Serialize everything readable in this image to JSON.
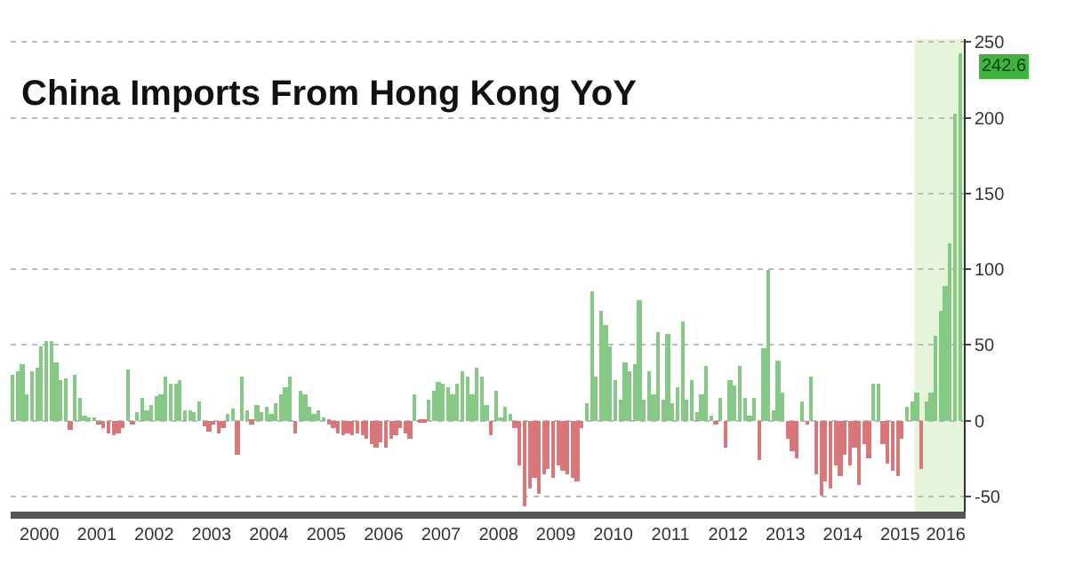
{
  "chart_data": {
    "type": "bar",
    "title": "China Imports From Hong Kong YoY",
    "x": [
      "2000-01",
      "2000-02",
      "2000-03",
      "2000-04",
      "2000-05",
      "2000-06",
      "2000-07",
      "2000-08",
      "2000-09",
      "2000-10",
      "2000-11",
      "2000-12",
      "2001-01",
      "2001-02",
      "2001-03",
      "2001-04",
      "2001-05",
      "2001-06",
      "2001-07",
      "2001-08",
      "2001-09",
      "2001-10",
      "2001-11",
      "2001-12",
      "2002-01",
      "2002-02",
      "2002-03",
      "2002-04",
      "2002-05",
      "2002-06",
      "2002-07",
      "2002-08",
      "2002-09",
      "2002-10",
      "2002-11",
      "2002-12",
      "2003-01",
      "2003-02",
      "2003-03",
      "2003-04",
      "2003-05",
      "2003-06",
      "2003-07",
      "2003-08",
      "2003-09",
      "2003-10",
      "2003-11",
      "2003-12",
      "2004-01",
      "2004-02",
      "2004-03",
      "2004-04",
      "2004-05",
      "2004-06",
      "2004-07",
      "2004-08",
      "2004-09",
      "2004-10",
      "2004-11",
      "2004-12",
      "2005-01",
      "2005-02",
      "2005-03",
      "2005-04",
      "2005-05",
      "2005-06",
      "2005-07",
      "2005-08",
      "2005-09",
      "2005-10",
      "2005-11",
      "2005-12",
      "2006-01",
      "2006-02",
      "2006-03",
      "2006-04",
      "2006-05",
      "2006-06",
      "2006-07",
      "2006-08",
      "2006-09",
      "2006-10",
      "2006-11",
      "2006-12",
      "2007-01",
      "2007-02",
      "2007-03",
      "2007-04",
      "2007-05",
      "2007-06",
      "2007-07",
      "2007-08",
      "2007-09",
      "2007-10",
      "2007-11",
      "2007-12",
      "2008-01",
      "2008-02",
      "2008-03",
      "2008-04",
      "2008-05",
      "2008-06",
      "2008-07",
      "2008-08",
      "2008-09",
      "2008-10",
      "2008-11",
      "2008-12",
      "2009-01",
      "2009-02",
      "2009-03",
      "2009-04",
      "2009-05",
      "2009-06",
      "2009-07",
      "2009-08",
      "2009-09",
      "2009-10",
      "2009-11",
      "2009-12",
      "2010-01",
      "2010-02",
      "2010-03",
      "2010-04",
      "2010-05",
      "2010-06",
      "2010-07",
      "2010-08",
      "2010-09",
      "2010-10",
      "2010-11",
      "2010-12",
      "2011-01",
      "2011-02",
      "2011-03",
      "2011-04",
      "2011-05",
      "2011-06",
      "2011-07",
      "2011-08",
      "2011-09",
      "2011-10",
      "2011-11",
      "2011-12",
      "2012-01",
      "2012-02",
      "2012-03",
      "2012-04",
      "2012-05",
      "2012-06",
      "2012-07",
      "2012-08",
      "2012-09",
      "2012-10",
      "2012-11",
      "2012-12",
      "2013-01",
      "2013-02",
      "2013-03",
      "2013-04",
      "2013-05",
      "2013-06",
      "2013-07",
      "2013-08",
      "2013-09",
      "2013-10",
      "2013-11",
      "2013-12",
      "2014-01",
      "2014-02",
      "2014-03",
      "2014-04",
      "2014-05",
      "2014-06",
      "2014-07",
      "2014-08",
      "2014-09",
      "2014-10",
      "2014-11",
      "2014-12",
      "2015-01",
      "2015-02",
      "2015-03",
      "2015-04",
      "2015-05",
      "2015-06",
      "2015-07",
      "2015-08",
      "2015-09",
      "2015-10",
      "2015-11",
      "2015-12",
      "2016-01",
      "2016-02",
      "2016-03",
      "2016-04",
      "2016-05",
      "2016-06",
      "2016-07"
    ],
    "values": [
      30,
      33,
      37,
      18,
      33,
      35,
      49,
      53,
      53,
      39,
      27,
      28,
      -6,
      30,
      15,
      3,
      2,
      1,
      -3,
      -5,
      -8,
      -9,
      -8,
      -5,
      34,
      -3,
      6,
      15,
      7,
      10,
      16,
      18,
      29,
      24,
      24,
      27,
      7,
      7,
      6,
      13,
      -4,
      -7,
      -3,
      -8,
      -5,
      4,
      8,
      -22,
      29,
      7,
      -2,
      10,
      6,
      9,
      5,
      12,
      18,
      22,
      29,
      -8,
      20,
      18,
      9,
      4,
      7,
      2,
      -2,
      -5,
      -8,
      -10,
      -8,
      -10,
      -8,
      -10,
      -12,
      -15,
      -18,
      -14,
      -18,
      -12,
      -10,
      -5,
      -8,
      -12,
      18,
      -1,
      -1,
      14,
      20,
      26,
      24,
      22,
      18,
      25,
      33,
      29,
      18,
      35,
      29,
      10,
      -10,
      20,
      2,
      9,
      4,
      -5,
      -30,
      -57,
      -45,
      -38,
      -48,
      -35,
      -32,
      -38,
      -30,
      -33,
      -35,
      -38,
      -40,
      -5,
      12,
      86,
      29,
      72,
      63,
      49,
      27,
      14,
      39,
      33,
      37,
      80,
      14,
      33,
      18,
      59,
      14,
      57,
      12,
      22,
      65,
      14,
      27,
      6,
      17,
      36,
      3,
      -3,
      15,
      -18,
      27,
      23,
      36,
      15,
      3,
      15,
      -26,
      48,
      99,
      7,
      40,
      19,
      -12,
      -20,
      -25,
      13,
      -3,
      29,
      -35,
      -50,
      -40,
      -45,
      -30,
      -37,
      -22,
      -30,
      -18,
      -42,
      -15,
      -25,
      25,
      25,
      -15,
      -28,
      -33,
      -37,
      -12,
      9,
      13,
      19,
      -32,
      13,
      19,
      56,
      72,
      89,
      117,
      203,
      242.6
    ],
    "colors": [
      "#86c986",
      "#86c986",
      "#86c986",
      "#86c986",
      "#86c986",
      "#86c986",
      "#86c986",
      "#86c986",
      "#86c986",
      "#86c986",
      "#86c986",
      "#86c986",
      "#d9767a",
      "#86c986",
      "#86c986",
      "#86c986",
      "#86c986",
      "#86c986",
      "#d9767a",
      "#d9767a",
      "#d9767a",
      "#d9767a",
      "#d9767a",
      "#d9767a",
      "#86c986",
      "#d9767a",
      "#86c986",
      "#86c986",
      "#86c986",
      "#86c986",
      "#86c986",
      "#86c986",
      "#86c986",
      "#86c986",
      "#86c986",
      "#86c986",
      "#86c986",
      "#86c986",
      "#86c986",
      "#86c986",
      "#d9767a",
      "#d9767a",
      "#d9767a",
      "#d9767a",
      "#d9767a",
      "#86c986",
      "#86c986",
      "#d9767a",
      "#86c986",
      "#86c986",
      "#d9767a",
      "#86c986",
      "#86c986",
      "#86c986",
      "#86c986",
      "#86c986",
      "#86c986",
      "#86c986",
      "#86c986",
      "#d9767a",
      "#86c986",
      "#86c986",
      "#86c986",
      "#86c986",
      "#86c986",
      "#86c986",
      "#d9767a",
      "#d9767a",
      "#d9767a",
      "#d9767a",
      "#d9767a",
      "#d9767a",
      "#d9767a",
      "#d9767a",
      "#d9767a",
      "#d9767a",
      "#d9767a",
      "#d9767a",
      "#d9767a",
      "#d9767a",
      "#d9767a",
      "#d9767a",
      "#d9767a",
      "#d9767a",
      "#86c986",
      "#d9767a",
      "#d9767a",
      "#86c986",
      "#86c986",
      "#86c986",
      "#86c986",
      "#86c986",
      "#86c986",
      "#86c986",
      "#86c986",
      "#86c986",
      "#86c986",
      "#86c986",
      "#86c986",
      "#86c986",
      "#d9767a",
      "#86c986",
      "#86c986",
      "#86c986",
      "#86c986",
      "#d9767a",
      "#d9767a",
      "#d9767a",
      "#d9767a",
      "#d9767a",
      "#d9767a",
      "#d9767a",
      "#d9767a",
      "#d9767a",
      "#d9767a",
      "#d9767a",
      "#d9767a",
      "#d9767a",
      "#d9767a",
      "#d9767a",
      "#86c986",
      "#86c986",
      "#86c986",
      "#86c986",
      "#86c986",
      "#86c986",
      "#86c986",
      "#86c986",
      "#86c986",
      "#86c986",
      "#86c986",
      "#86c986",
      "#86c986",
      "#86c986",
      "#86c986",
      "#86c986",
      "#86c986",
      "#86c986",
      "#86c986",
      "#86c986",
      "#86c986",
      "#86c986",
      "#86c986",
      "#86c986",
      "#86c986",
      "#86c986",
      "#86c986",
      "#d9767a",
      "#86c986",
      "#d9767a",
      "#86c986",
      "#86c986",
      "#86c986",
      "#86c986",
      "#86c986",
      "#86c986",
      "#d9767a",
      "#86c986",
      "#86c986",
      "#86c986",
      "#86c986",
      "#86c986",
      "#d9767a",
      "#d9767a",
      "#d9767a",
      "#86c986",
      "#d9767a",
      "#86c986",
      "#d9767a",
      "#d9767a",
      "#d9767a",
      "#d9767a",
      "#d9767a",
      "#d9767a",
      "#d9767a",
      "#d9767a",
      "#d9767a",
      "#d9767a",
      "#d9767a",
      "#d9767a",
      "#86c986",
      "#86c986",
      "#d9767a",
      "#d9767a",
      "#d9767a",
      "#d9767a",
      "#d9767a",
      "#86c986",
      "#86c986",
      "#86c986",
      "#d9767a",
      "#86c986",
      "#86c986",
      "#86c986",
      "#86c986",
      "#86c986",
      "#86c986",
      "#86c986",
      "#86c986"
    ],
    "xlim": [
      "1999-12-15",
      "2016-07-25"
    ],
    "xticks": [
      {
        "value": "2000-06-15",
        "label": "2000"
      },
      {
        "value": "2001-06-15",
        "label": "2001"
      },
      {
        "value": "2002-06-15",
        "label": "2002"
      },
      {
        "value": "2003-06-15",
        "label": "2003"
      },
      {
        "value": "2004-06-15",
        "label": "2004"
      },
      {
        "value": "2005-06-15",
        "label": "2005"
      },
      {
        "value": "2006-06-15",
        "label": "2006"
      },
      {
        "value": "2007-06-15",
        "label": "2007"
      },
      {
        "value": "2008-06-15",
        "label": "2008"
      },
      {
        "value": "2009-06-15",
        "label": "2009"
      },
      {
        "value": "2010-06-15",
        "label": "2010"
      },
      {
        "value": "2011-06-15",
        "label": "2011"
      },
      {
        "value": "2012-06-15",
        "label": "2012"
      },
      {
        "value": "2013-06-15",
        "label": "2013"
      },
      {
        "value": "2014-06-15",
        "label": "2014"
      },
      {
        "value": "2015-06-15",
        "label": "2015"
      },
      {
        "value": "2016-04-01",
        "label": "2016"
      }
    ],
    "ylim": [
      -60,
      252
    ],
    "yticks": [
      -50,
      0,
      50,
      100,
      150,
      200,
      250
    ],
    "grid": "y",
    "bands": [
      {
        "axis": "x",
        "from": "2015-09-15",
        "to": "2016-07-25",
        "color": "#e6f5da"
      }
    ],
    "annotations": [
      {
        "text": "242.6",
        "x": "2016-07",
        "y": 242.6
      }
    ]
  }
}
